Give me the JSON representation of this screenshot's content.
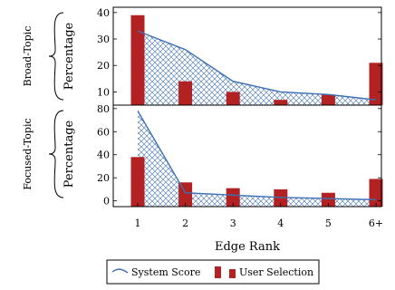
{
  "chart_data": {
    "type": "bar",
    "xlabel": "Edge Rank",
    "categories": [
      "1",
      "2",
      "3",
      "4",
      "5",
      "6+"
    ],
    "legend": {
      "position": "bottom",
      "line_label": "System Score",
      "bar_label": "User Selection"
    },
    "colors": {
      "bar": "#b22222",
      "line": "#3d6fb4",
      "hatch": "#3d6fb4"
    },
    "panels": [
      {
        "group_label": "Broad-Topic",
        "ylabel": "Percentage",
        "ylim": [
          5,
          42
        ],
        "yticks": [
          10,
          20,
          30,
          40
        ],
        "series": [
          {
            "name": "System Score",
            "kind": "line",
            "values": [
              33,
              26,
              14,
              10,
              9,
              7
            ]
          },
          {
            "name": "User Selection",
            "kind": "bar",
            "values": [
              39,
              14,
              10,
              7,
              9,
              21
            ]
          }
        ]
      },
      {
        "group_label": "Focused-Topic",
        "ylabel": "Percentage",
        "ylim": [
          -5,
          83
        ],
        "yticks": [
          0,
          20,
          40,
          60,
          80
        ],
        "series": [
          {
            "name": "System Score",
            "kind": "line",
            "values": [
              78,
              7,
              5,
              3,
              2,
              1
            ]
          },
          {
            "name": "User Selection",
            "kind": "bar",
            "values": [
              38,
              16,
              11,
              10,
              7,
              19
            ]
          }
        ]
      }
    ]
  }
}
